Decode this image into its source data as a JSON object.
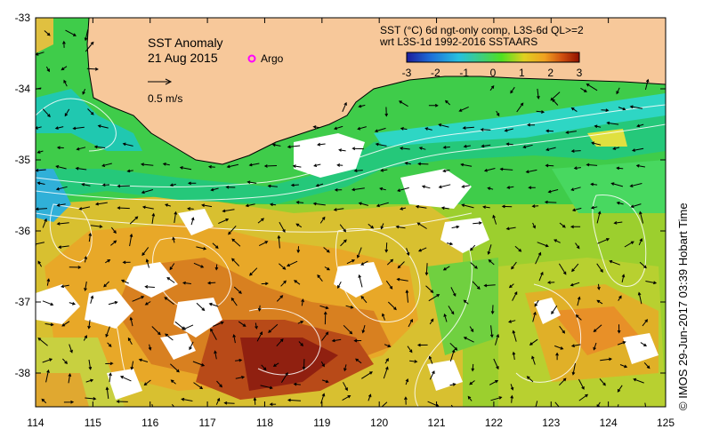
{
  "map": {
    "title": "SST Anomaly",
    "date": "21 Aug 2015",
    "argo_label": "Argo",
    "scale_label": "0.5 m/s",
    "product_line1": "SST (°C) 6d ngt-only comp, L3S-6d QL>=2",
    "product_line2": "wrt L3S-1d 1992-2016 SSTAARS",
    "credit": "© IMOS 29-Jun-2017 03:39 Hobart Time"
  },
  "colorbar": {
    "ticks": [
      "-3",
      "-2",
      "-1",
      "0",
      "1",
      "2",
      "3"
    ],
    "colors": [
      "#1c1c9c",
      "#1f6fd8",
      "#27c0e0",
      "#40d070",
      "#50e020",
      "#e0d020",
      "#f0a020",
      "#d05010",
      "#901000"
    ]
  },
  "axes": {
    "lon_ticks": [
      "114",
      "115",
      "116",
      "117",
      "118",
      "119",
      "120",
      "121",
      "122",
      "123",
      "124",
      "125"
    ],
    "lat_ticks": [
      "-33",
      "-34",
      "-35",
      "-36",
      "-37",
      "-38"
    ]
  },
  "colors": {
    "land": "#f7c89a",
    "coast": "#000000",
    "argo": "#ff00ff"
  }
}
